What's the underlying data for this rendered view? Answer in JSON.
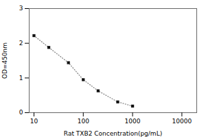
{
  "chart_data": {
    "type": "line",
    "x_label": "Rat TXB2 Concentration(pg/mL)",
    "y_label": "OD=450nm",
    "x": [
      10,
      20,
      50,
      100,
      200,
      500,
      1000
    ],
    "series": [
      {
        "type": "line",
        "color": "#888888",
        "line_style": "dotted",
        "values": [
          2.22,
          1.88,
          1.44,
          0.95,
          0.63,
          0.31,
          0.19
        ]
      },
      {
        "type": "scatter",
        "color": "#111111",
        "marker": "square",
        "values": [
          2.22,
          1.88,
          1.44,
          0.95,
          0.63,
          0.31,
          0.19
        ]
      }
    ],
    "log": "x",
    "xlim": [
      8,
      20000
    ],
    "ylim": [
      0,
      3
    ],
    "xticks": [
      10,
      100,
      1000,
      10000
    ],
    "yticks": [
      0,
      1,
      2,
      3
    ]
  }
}
